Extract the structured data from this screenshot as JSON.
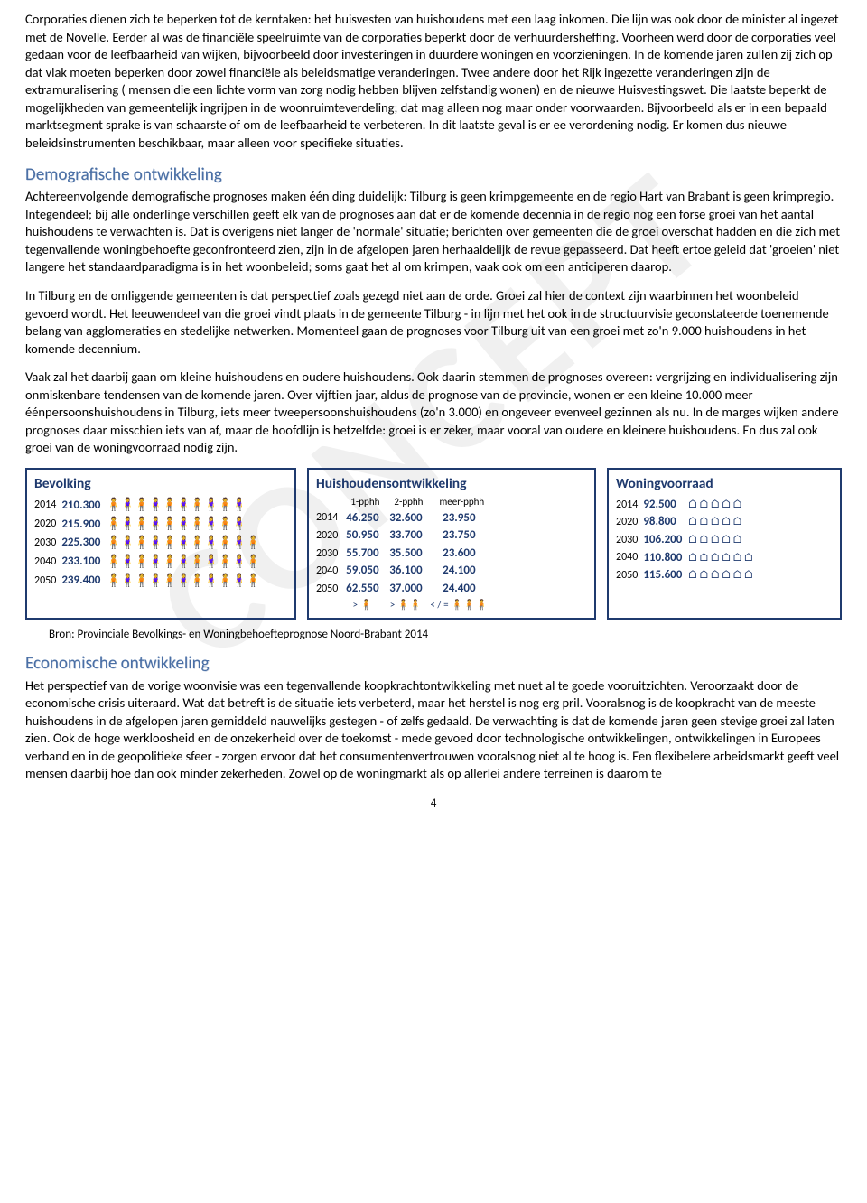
{
  "watermark": "CONCEPT",
  "para1": "Corporaties dienen zich te  beperken tot de kerntaken: het huisvesten van huishoudens met een laag inkomen. Die lijn was ook door de minister al ingezet met de Novelle. Eerder al was de financiële speelruimte van de corporaties beperkt door de verhuurdersheffing. Voorheen werd door de corporaties veel gedaan voor de leefbaarheid van wijken, bijvoorbeeld door investeringen in duurdere woningen en voorzieningen. In de komende jaren zullen zij zich op dat vlak moeten beperken door zowel financiële als beleidsmatige veranderingen. Twee andere door het Rijk ingezette veranderingen zijn de extramuralisering ( mensen die een lichte vorm van zorg nodig hebben blijven zelfstandig wonen) en de nieuwe Huisvestingswet. Die laatste beperkt de mogelijkheden van gemeentelijk ingrijpen in de woonruimteverdeling; dat mag alleen nog maar onder voorwaarden. Bijvoorbeeld als er in een bepaald marktsegment sprake is van schaarste of om de leefbaarheid te verbeteren. In dit laatste geval is er ee  verordening nodig. Er komen dus nieuwe beleidsinstrumenten beschikbaar, maar alleen voor specifieke situaties.",
  "h_demo": "Demografische ontwikkeling",
  "para2": "Achtereenvolgende demografische prognoses maken één ding duidelijk: Tilburg is geen krimpgemeente en de regio Hart van Brabant is geen krimpregio. Integendeel; bij alle onderlinge verschillen geeft elk van de prognoses aan dat er de komende decennia in de regio nog een forse groei van het aantal huishoudens te verwachten is. Dat is overigens niet langer de 'normale' situatie; berichten over gemeenten die de groei overschat hadden en die zich met tegenvallende woningbehoefte geconfronteerd zien, zijn in de afgelopen jaren herhaaldelijk de revue gepasseerd. Dat heeft ertoe geleid dat 'groeien' niet langere het standaardparadigma is in het woonbeleid; soms gaat het al om krimpen, vaak ook om een anticiperen daarop.",
  "para3": "In Tilburg en de omliggende gemeenten is dat perspectief zoals gezegd niet aan de orde. Groei zal hier de context zijn waarbinnen het woonbeleid gevoerd wordt. Het leeuwendeel van die groei vindt plaats in de gemeente Tilburg - in lijn met het ook in de structuurvisie geconstateerde toenemende belang van agglomeraties en stedelijke netwerken. Momenteel gaan de prognoses voor Tilburg uit van een groei met zo'n 9.000 huishoudens in het komende decennium.",
  "para4": "Vaak zal het daarbij gaan om kleine huishoudens en oudere huishoudens. Ook daarin stemmen de prognoses overeen: vergrijzing en individualisering zijn onmiskenbare tendensen van de komende jaren. Over vijftien jaar, aldus de prognose van de provincie, wonen er een kleine 10.000 meer éénpersoonshuishoudens in Tilburg, iets meer tweepersoonshuishoudens (zo'n 3.000) en ongeveer evenveel gezinnen als nu. In de marges wijken andere prognoses daar misschien iets van af, maar de hoofdlijn is hetzelfde: groei is er zeker, maar vooral van oudere en kleinere huishoudens. En dus zal ook groei van de woningvoorraad nodig zijn.",
  "bevolking": {
    "title": "Bevolking",
    "rows": [
      {
        "year": "2014",
        "value": "210.300",
        "icons": 10
      },
      {
        "year": "2020",
        "value": "215.900",
        "icons": 10
      },
      {
        "year": "2030",
        "value": "225.300",
        "icons": 11
      },
      {
        "year": "2040",
        "value": "233.100",
        "icons": 11
      },
      {
        "year": "2050",
        "value": "239.400",
        "icons": 11
      }
    ]
  },
  "huishoudens": {
    "title": "Huishoudensontwikkeling",
    "cols": [
      "1-pphh",
      "2-pphh",
      "meer-pphh"
    ],
    "rows": [
      {
        "year": "2014",
        "v": [
          "46.250",
          "32.600",
          "23.950"
        ]
      },
      {
        "year": "2020",
        "v": [
          "50.950",
          "33.700",
          "23.750"
        ]
      },
      {
        "year": "2030",
        "v": [
          "55.700",
          "35.500",
          "23.600"
        ]
      },
      {
        "year": "2040",
        "v": [
          "59.050",
          "36.100",
          "24.100"
        ]
      },
      {
        "year": "2050",
        "v": [
          "62.550",
          "37.000",
          "24.400"
        ]
      }
    ],
    "trend": [
      ">",
      ">",
      "< / ="
    ]
  },
  "woningvoorraad": {
    "title": "Woningvoorraad",
    "rows": [
      {
        "year": "2014",
        "value": "92.500",
        "icons": 5
      },
      {
        "year": "2020",
        "value": "98.800",
        "icons": 5
      },
      {
        "year": "2030",
        "value": "106.200",
        "icons": 5
      },
      {
        "year": "2040",
        "value": "110.800",
        "icons": 6
      },
      {
        "year": "2050",
        "value": "115.600",
        "icons": 6
      }
    ]
  },
  "source": "Bron: Provinciale Bevolkings- en Woningbehoefteprognose Noord-Brabant 2014",
  "h_econ": "Economische ontwikkeling",
  "para5": "Het perspectief van de vorige woonvisie was een tegenvallende koopkrachtontwikkeling met nuet al te goede vooruitzichten. Veroorzaakt door de economische crisis uiteraard.  Wat dat betreft is de situatie iets verbeterd, maar het herstel is nog erg pril. Vooralsnog is de koopkracht van de meeste huishoudens in de afgelopen jaren gemiddeld nauwelijks gestegen - of zelfs gedaald. De verwachting is dat de komende jaren geen stevige groei zal  laten zien. Ook de hoge werkloosheid en de onzekerheid over de toekomst - mede gevoed door technologische ontwikkelingen, ontwikkelingen in Europees verband en in de geopolitieke sfeer - zorgen ervoor dat het consumentenvertrouwen vooralsnog niet al te hoog is. Een flexibelere arbeidsmarkt geeft veel mensen daarbij hoe dan ook minder zekerheden. Zowel op de woningmarkt als op allerlei andere terreinen is daarom te",
  "pagenum": "4",
  "colors": {
    "heading": "#4a6fa5",
    "box_border": "#1f3a6e",
    "infographic_icon": "#1f3a6e"
  }
}
